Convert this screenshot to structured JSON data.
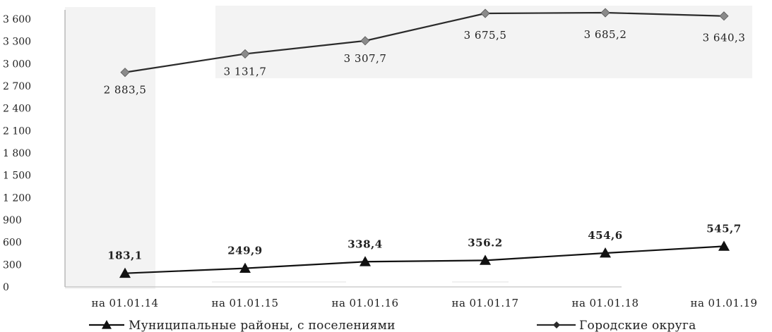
{
  "chart_data": {
    "type": "line",
    "categories": [
      "на 01.01.14",
      "на 01.01.15",
      "на 01.01.16",
      "на 01.01.17",
      "на 01.01.18",
      "на 01.01.19"
    ],
    "ylim": [
      0,
      3600
    ],
    "yticks": [
      0,
      300,
      600,
      900,
      1200,
      1500,
      1800,
      2100,
      2400,
      2700,
      3000,
      3300,
      3600
    ],
    "ytick_labels": [
      "0",
      "300",
      "600",
      "900",
      "1 200",
      "1 500",
      "1 800",
      "2 100",
      "2 400",
      "2 700",
      "3 000",
      "3 300",
      "3 600"
    ],
    "grid": false,
    "legend_position": "bottom",
    "series": [
      {
        "name": "Городские округа",
        "marker": "diamond",
        "color": "#2b2b2b",
        "marker_color": "#8a8a8a",
        "values": [
          2883.5,
          3131.7,
          3307.7,
          3675.5,
          3685.2,
          3640.3
        ],
        "labels": [
          "2 883,5",
          "3 131,7",
          "3 307,7",
          "3 675,5",
          "3 685,2",
          "3 640,3"
        ]
      },
      {
        "name": "Муниципальные районы, с поселениями",
        "marker": "triangle",
        "color": "#111111",
        "marker_color": "#111111",
        "values": [
          183.1,
          249.9,
          338.4,
          356.2,
          454.6,
          545.7
        ],
        "labels": [
          "183,1",
          "249,9",
          "338,4",
          "356.2",
          "454,6",
          "545,7"
        ]
      }
    ]
  }
}
